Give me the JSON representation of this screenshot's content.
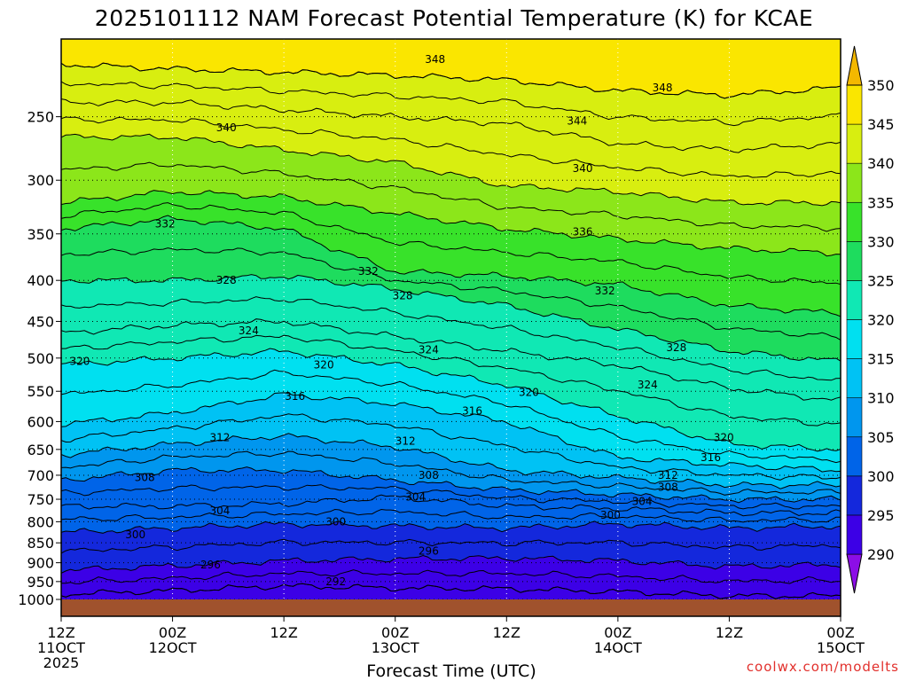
{
  "chart_data": {
    "type": "contour-filled",
    "title": "2025101112 NAM Forecast Potential Temperature (K) for KCAE",
    "xlabel": "Forecast Time (UTC)",
    "ylabel": "",
    "x_ticks": [
      {
        "hour": 0,
        "line1": "12Z",
        "line2": "11OCT",
        "line3": "2025"
      },
      {
        "hour": 12,
        "line1": "00Z",
        "line2": "12OCT"
      },
      {
        "hour": 24,
        "line1": "12Z",
        "line2": ""
      },
      {
        "hour": 36,
        "line1": "00Z",
        "line2": "13OCT"
      },
      {
        "hour": 48,
        "line1": "12Z",
        "line2": ""
      },
      {
        "hour": 60,
        "line1": "00Z",
        "line2": "14OCT"
      },
      {
        "hour": 72,
        "line1": "12Z",
        "line2": ""
      },
      {
        "hour": 84,
        "line1": "00Z",
        "line2": "15OCT"
      }
    ],
    "x_range_hours": [
      0,
      84
    ],
    "y_ticks_hpa": [
      250,
      300,
      350,
      400,
      450,
      500,
      550,
      600,
      650,
      700,
      750,
      800,
      850,
      900,
      950,
      1000
    ],
    "y_range_hpa": [
      200,
      1000
    ],
    "y_scale": "log-pressure",
    "colorbar": {
      "levels": [
        290,
        295,
        300,
        305,
        310,
        315,
        320,
        325,
        330,
        335,
        340,
        345,
        350
      ],
      "colors": [
        "#8c0ee6",
        "#3c00e6",
        "#1428dc",
        "#0064e8",
        "#0096ee",
        "#00c2f4",
        "#00e0f0",
        "#10e8b4",
        "#1edc5e",
        "#38e22a",
        "#8ce61a",
        "#d8ee10",
        "#fae600",
        "#f4b800"
      ],
      "labels": [
        "290",
        "295",
        "300",
        "305",
        "310",
        "315",
        "320",
        "325",
        "330",
        "335",
        "340",
        "345",
        "350"
      ]
    },
    "isentrope_levels": [
      290,
      292,
      294,
      296,
      298,
      300,
      302,
      304,
      306,
      308,
      310,
      312,
      314,
      316,
      318,
      320,
      322,
      324,
      326,
      328,
      330,
      332,
      334,
      336,
      338,
      340,
      342,
      344,
      346,
      348,
      350
    ],
    "series": [
      {
        "name": "theta_292",
        "hours": [
          0,
          12,
          24,
          36,
          48,
          60,
          72,
          84
        ],
        "pressure_hpa": [
          985,
          975,
          962,
          968,
          970,
          978,
          990,
          990
        ]
      },
      {
        "name": "theta_296",
        "hours": [
          0,
          12,
          24,
          36,
          48,
          60,
          72,
          84
        ],
        "pressure_hpa": [
          920,
          908,
          895,
          890,
          888,
          895,
          910,
          905
        ]
      },
      {
        "name": "theta_300",
        "hours": [
          0,
          12,
          24,
          36,
          48,
          60,
          72,
          84
        ],
        "pressure_hpa": [
          825,
          815,
          805,
          810,
          815,
          805,
          815,
          810
        ]
      },
      {
        "name": "theta_304",
        "hours": [
          0,
          12,
          24,
          36,
          48,
          60,
          72,
          84
        ],
        "pressure_hpa": [
          765,
          765,
          760,
          745,
          765,
          770,
          780,
          780
        ]
      },
      {
        "name": "theta_308",
        "hours": [
          0,
          12,
          24,
          36,
          48,
          60,
          72,
          84
        ],
        "pressure_hpa": [
          710,
          690,
          690,
          710,
          730,
          740,
          750,
          750
        ]
      },
      {
        "name": "theta_312",
        "hours": [
          0,
          12,
          24,
          36,
          48,
          60,
          72,
          84
        ],
        "pressure_hpa": [
          660,
          640,
          625,
          645,
          690,
          705,
          720,
          720
        ]
      },
      {
        "name": "theta_316",
        "hours": [
          0,
          12,
          24,
          36,
          48,
          60,
          72,
          84
        ],
        "pressure_hpa": [
          605,
          585,
          555,
          570,
          600,
          665,
          680,
          690
        ]
      },
      {
        "name": "theta_320",
        "hours": [
          0,
          12,
          24,
          36,
          48,
          60,
          72,
          84
        ],
        "pressure_hpa": [
          510,
          500,
          490,
          510,
          540,
          590,
          640,
          650
        ]
      },
      {
        "name": "theta_324",
        "hours": [
          0,
          12,
          24,
          36,
          48,
          60,
          72,
          84
        ],
        "pressure_hpa": [
          465,
          455,
          450,
          470,
          490,
          510,
          545,
          565
        ]
      },
      {
        "name": "theta_328",
        "hours": [
          0,
          12,
          24,
          36,
          48,
          60,
          72,
          84
        ],
        "pressure_hpa": [
          400,
          400,
          395,
          410,
          430,
          460,
          490,
          505
        ]
      },
      {
        "name": "theta_332",
        "hours": [
          0,
          12,
          24,
          36,
          48,
          60,
          72,
          84
        ],
        "pressure_hpa": [
          345,
          335,
          345,
          390,
          395,
          405,
          430,
          440
        ]
      },
      {
        "name": "theta_336",
        "hours": [
          0,
          12,
          24,
          36,
          48,
          60,
          72,
          84
        ],
        "pressure_hpa": [
          320,
          310,
          315,
          330,
          345,
          355,
          365,
          370
        ]
      },
      {
        "name": "theta_340",
        "hours": [
          0,
          12,
          24,
          36,
          48,
          60,
          72,
          84
        ],
        "pressure_hpa": [
          265,
          265,
          275,
          285,
          305,
          310,
          320,
          320
        ]
      },
      {
        "name": "theta_344",
        "hours": [
          0,
          12,
          24,
          36,
          48,
          60,
          72,
          84
        ],
        "pressure_hpa": [
          240,
          240,
          245,
          250,
          255,
          270,
          275,
          270
        ]
      },
      {
        "name": "theta_348",
        "hours": [
          0,
          12,
          24,
          36,
          48,
          60,
          72,
          84
        ],
        "pressure_hpa": [
          215,
          218,
          220,
          222,
          225,
          232,
          235,
          230
        ]
      }
    ],
    "contour_labels": [
      {
        "text": "348",
        "hour": 40.3,
        "hpa": 212
      },
      {
        "text": "348",
        "hour": 64.8,
        "hpa": 230
      },
      {
        "text": "344",
        "hour": 55.6,
        "hpa": 253
      },
      {
        "text": "340",
        "hour": 17.8,
        "hpa": 258
      },
      {
        "text": "340",
        "hour": 56.2,
        "hpa": 290
      },
      {
        "text": "336",
        "hour": 56.2,
        "hpa": 348
      },
      {
        "text": "332",
        "hour": 11.2,
        "hpa": 340
      },
      {
        "text": "332",
        "hour": 33.1,
        "hpa": 390
      },
      {
        "text": "332",
        "hour": 58.6,
        "hpa": 412
      },
      {
        "text": "328",
        "hour": 17.8,
        "hpa": 400
      },
      {
        "text": "328",
        "hour": 36.8,
        "hpa": 418
      },
      {
        "text": "328",
        "hour": 66.3,
        "hpa": 485
      },
      {
        "text": "324",
        "hour": 20.2,
        "hpa": 462
      },
      {
        "text": "324",
        "hour": 39.6,
        "hpa": 488
      },
      {
        "text": "324",
        "hour": 63.2,
        "hpa": 540
      },
      {
        "text": "320",
        "hour": 2.0,
        "hpa": 505
      },
      {
        "text": "320",
        "hour": 28.3,
        "hpa": 510
      },
      {
        "text": "320",
        "hour": 50.4,
        "hpa": 552
      },
      {
        "text": "320",
        "hour": 71.4,
        "hpa": 628
      },
      {
        "text": "316",
        "hour": 25.2,
        "hpa": 558
      },
      {
        "text": "316",
        "hour": 44.3,
        "hpa": 582
      },
      {
        "text": "316",
        "hour": 70.0,
        "hpa": 665
      },
      {
        "text": "312",
        "hour": 17.1,
        "hpa": 628
      },
      {
        "text": "312",
        "hour": 37.1,
        "hpa": 635
      },
      {
        "text": "312",
        "hour": 65.4,
        "hpa": 700
      },
      {
        "text": "308",
        "hour": 9.0,
        "hpa": 705
      },
      {
        "text": "308",
        "hour": 39.6,
        "hpa": 700
      },
      {
        "text": "308",
        "hour": 65.4,
        "hpa": 725
      },
      {
        "text": "304",
        "hour": 17.1,
        "hpa": 775
      },
      {
        "text": "304",
        "hour": 38.2,
        "hpa": 745
      },
      {
        "text": "304",
        "hour": 62.6,
        "hpa": 755
      },
      {
        "text": "300",
        "hour": 8.0,
        "hpa": 830
      },
      {
        "text": "300",
        "hour": 29.6,
        "hpa": 800
      },
      {
        "text": "300",
        "hour": 59.2,
        "hpa": 785
      },
      {
        "text": "296",
        "hour": 16.1,
        "hpa": 905
      },
      {
        "text": "296",
        "hour": 39.6,
        "hpa": 870
      },
      {
        "text": "292",
        "hour": 29.6,
        "hpa": 950
      }
    ],
    "ground_color": "#a0522d",
    "grid": "dotted"
  },
  "credit": "coolwx.com/modelts"
}
